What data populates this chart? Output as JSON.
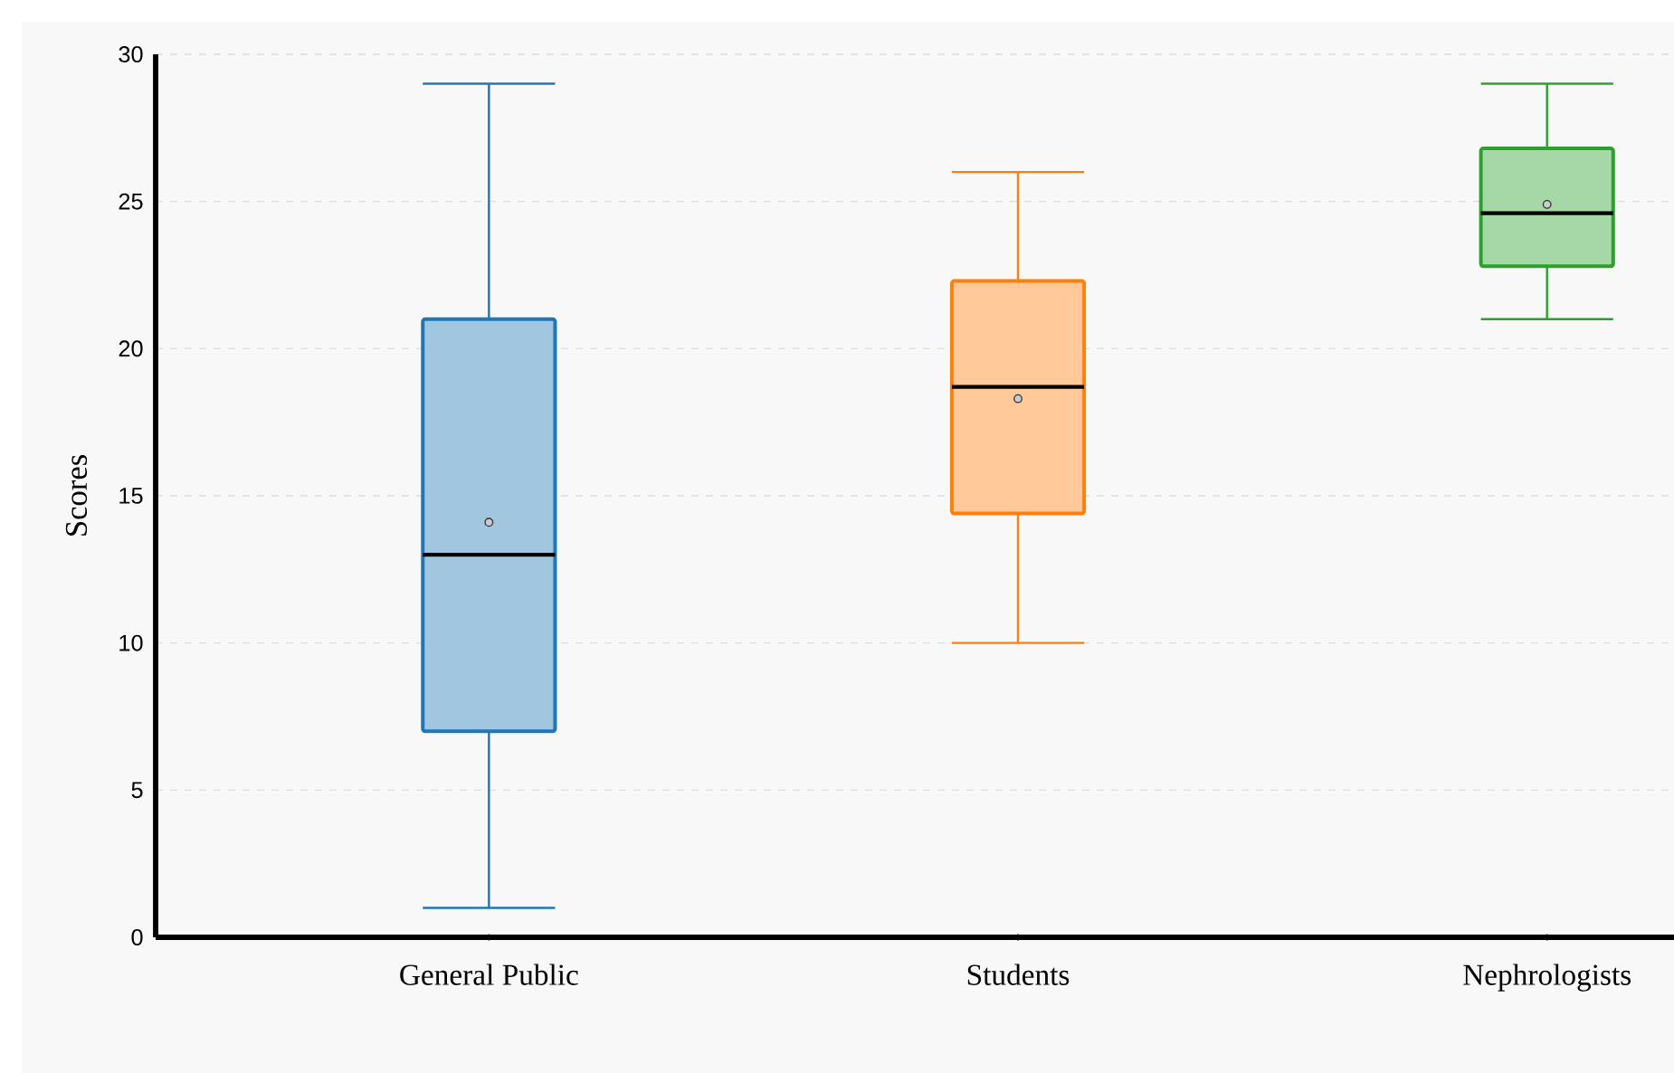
{
  "chart_data": {
    "type": "box",
    "ylabel": "Scores",
    "categories": [
      "General Public",
      "Students",
      "Nephrologists"
    ],
    "colors": [
      "#1f77b4",
      "#ff7f0e",
      "#2ca02c"
    ],
    "boxes": [
      {
        "low": 1,
        "q1": 7,
        "median": 13,
        "q3": 21,
        "high": 29,
        "mean": 14.1
      },
      {
        "low": 10,
        "q1": 14.4,
        "median": 18.7,
        "q3": 22.3,
        "high": 26,
        "mean": 18.3
      },
      {
        "low": 21,
        "q1": 22.8,
        "median": 24.6,
        "q3": 26.8,
        "high": 29,
        "mean": 24.9
      }
    ],
    "ylim": [
      0,
      30
    ],
    "yticks": [
      0,
      5,
      10,
      15,
      20,
      25,
      30
    ],
    "grid": "y"
  }
}
